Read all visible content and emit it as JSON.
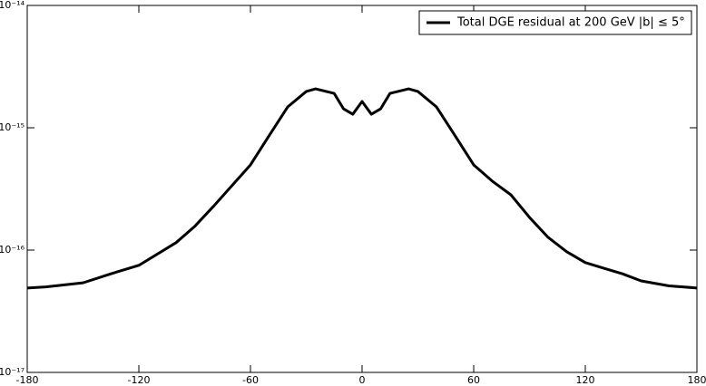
{
  "chart_data": {
    "type": "line",
    "x": [
      -180,
      -170,
      -150,
      -135,
      -120,
      -100,
      -90,
      -80,
      -70,
      -60,
      -50,
      -40,
      -30,
      -25,
      -15,
      -10,
      -5,
      0,
      5,
      10,
      15,
      25,
      30,
      40,
      50,
      60,
      70,
      80,
      90,
      100,
      110,
      120,
      130,
      140,
      150,
      165,
      180
    ],
    "series": [
      {
        "name": "Total DGE residual at 200 GeV |b| ≤ 5°",
        "color": "#000000",
        "values": [
          4.9e-17,
          5e-17,
          5.4e-17,
          6.4e-17,
          7.5e-17,
          1.15e-16,
          1.56e-16,
          2.27e-16,
          3.36e-16,
          4.97e-16,
          8.6e-16,
          1.48e-15,
          1.98e-15,
          2.08e-15,
          1.91e-15,
          1.43e-15,
          1.29e-15,
          1.64e-15,
          1.29e-15,
          1.43e-15,
          1.91e-15,
          2.08e-15,
          1.98e-15,
          1.48e-15,
          8.6e-16,
          4.97e-16,
          3.66e-16,
          2.83e-16,
          1.85e-16,
          1.27e-16,
          9.7e-17,
          7.9e-17,
          7.1e-17,
          6.4e-17,
          5.6e-17,
          5.1e-17,
          4.9e-17
        ]
      }
    ],
    "xlim": [
      -180,
      180
    ],
    "xticks": [
      -180,
      -120,
      -60,
      0,
      60,
      120,
      180
    ],
    "ylim": [
      1e-17,
      1e-14
    ],
    "yscale": "log",
    "yticks": [
      {
        "value": 1e-17,
        "label": "10⁻¹⁷"
      },
      {
        "value": 1e-16,
        "label": "10⁻¹⁶"
      },
      {
        "value": 1e-15,
        "label": "10⁻¹⁵"
      },
      {
        "value": 1e-14,
        "label": "10⁻¹⁴"
      }
    ],
    "legend": "upper right"
  }
}
